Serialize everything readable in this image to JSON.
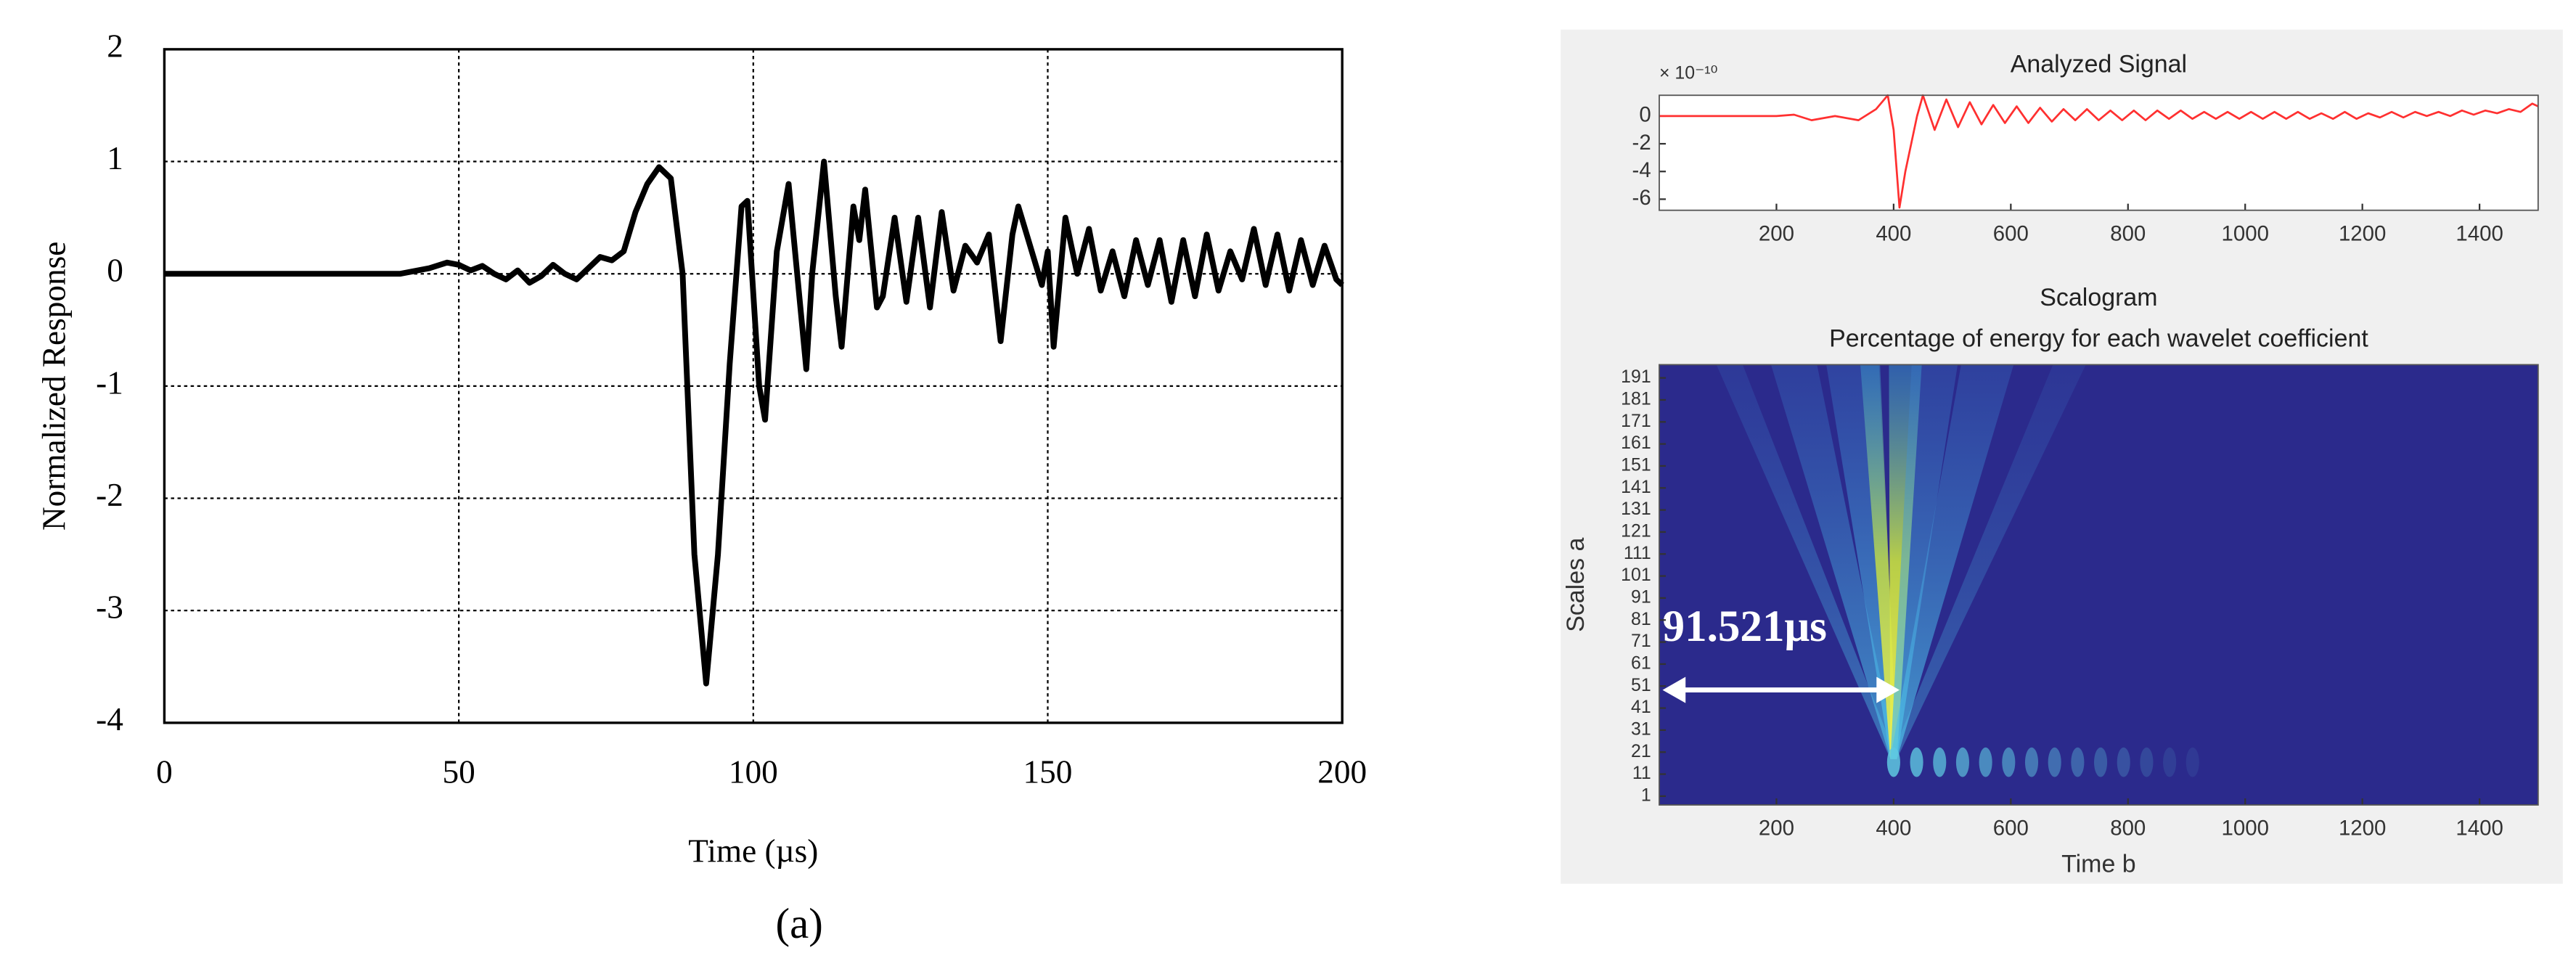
{
  "chart_data": [
    {
      "type": "line",
      "label": "(a)",
      "xlabel": "Time (µs)",
      "ylabel": "Normalized Response",
      "xlim": [
        0,
        200
      ],
      "xticks": [
        0,
        50,
        100,
        150,
        200
      ],
      "ylim": [
        -4,
        2
      ],
      "yticks": [
        -4,
        -3,
        -2,
        -1,
        0,
        1,
        2
      ],
      "grid": true,
      "series": [
        {
          "color": "#000000",
          "x": [
            0,
            40,
            45,
            48,
            50,
            52,
            54,
            56,
            58,
            60,
            62,
            64,
            66,
            68,
            70,
            72,
            74,
            76,
            78,
            80,
            82,
            84,
            86,
            88,
            90,
            92,
            94,
            96,
            98,
            99,
            101,
            102,
            104,
            106,
            108,
            109,
            110,
            112,
            114,
            115,
            117,
            118,
            119,
            121,
            122,
            124,
            126,
            128,
            130,
            132,
            134,
            136,
            138,
            140,
            142,
            144,
            145,
            147,
            149,
            150,
            151,
            153,
            155,
            157,
            159,
            161,
            163,
            165,
            167,
            169,
            171,
            173,
            175,
            177,
            179,
            181,
            183,
            185,
            187,
            189,
            191,
            193,
            195,
            197,
            199,
            200
          ],
          "values": [
            0,
            0,
            0.05,
            0.1,
            0.08,
            0.03,
            0.07,
            0,
            -0.05,
            0.03,
            -0.08,
            -0.02,
            0.08,
            0,
            -0.05,
            0.05,
            0.15,
            0.12,
            0.2,
            0.55,
            0.8,
            0.95,
            0.85,
            0,
            -2.5,
            -3.65,
            -2.5,
            -0.8,
            0.6,
            0.65,
            -1.0,
            -1.3,
            0.2,
            0.8,
            -0.3,
            -0.85,
            0,
            1.0,
            -0.2,
            -0.65,
            0.6,
            0.3,
            0.75,
            -0.3,
            -0.2,
            0.5,
            -0.25,
            0.5,
            -0.3,
            0.55,
            -0.15,
            0.25,
            0.1,
            0.35,
            -0.6,
            0.35,
            0.6,
            0.25,
            -0.1,
            0.2,
            -0.65,
            0.5,
            0,
            0.4,
            -0.15,
            0.2,
            -0.2,
            0.3,
            -0.1,
            0.3,
            -0.25,
            0.3,
            -0.2,
            0.35,
            -0.15,
            0.2,
            -0.05,
            0.4,
            -0.1,
            0.35,
            -0.15,
            0.3,
            -0.1,
            0.25,
            -0.05,
            -0.1
          ]
        }
      ]
    },
    {
      "type": "line",
      "title": "Analyzed Signal",
      "y_multiplier": "× 10⁻¹⁰",
      "xlim": [
        0,
        1500
      ],
      "xticks": [
        200,
        400,
        600,
        800,
        1000,
        1200,
        1400
      ],
      "ylim": [
        -6.8,
        1.5
      ],
      "yticks": [
        -6,
        -4,
        -2,
        0
      ],
      "grid": false,
      "series": [
        {
          "color": "#ff3030",
          "x": [
            0,
            200,
            230,
            260,
            300,
            340,
            370,
            390,
            400,
            410,
            420,
            440,
            450,
            470,
            490,
            510,
            530,
            550,
            570,
            590,
            610,
            630,
            650,
            670,
            690,
            710,
            730,
            750,
            770,
            790,
            810,
            830,
            850,
            870,
            890,
            910,
            930,
            950,
            970,
            990,
            1010,
            1030,
            1050,
            1070,
            1090,
            1110,
            1130,
            1150,
            1170,
            1190,
            1210,
            1230,
            1250,
            1270,
            1290,
            1310,
            1330,
            1350,
            1370,
            1390,
            1410,
            1430,
            1450,
            1470,
            1490,
            1500
          ],
          "values": [
            0,
            0,
            0.1,
            -0.3,
            0,
            -0.3,
            0.5,
            1.5,
            -1,
            -6.6,
            -4,
            0,
            1.5,
            -1,
            1.2,
            -0.8,
            1,
            -0.6,
            0.8,
            -0.5,
            0.7,
            -0.5,
            0.6,
            -0.4,
            0.5,
            -0.3,
            0.5,
            -0.3,
            0.4,
            -0.3,
            0.4,
            -0.3,
            0.4,
            -0.2,
            0.4,
            -0.2,
            0.3,
            -0.2,
            0.3,
            -0.2,
            0.3,
            -0.2,
            0.3,
            -0.2,
            0.3,
            -0.2,
            0.2,
            -0.2,
            0.3,
            -0.2,
            0.2,
            -0.1,
            0.3,
            -0.1,
            0.3,
            0,
            0.3,
            0,
            0.4,
            0.1,
            0.4,
            0.2,
            0.5,
            0.3,
            0.9,
            0.7
          ]
        }
      ]
    },
    {
      "type": "heatmap",
      "title": "Scalogram",
      "subtitle": "Percentage of energy for each wavelet coefficient",
      "xlabel": "Time b",
      "ylabel": "Scales a",
      "annotation": "91.521μs",
      "background": "#2b2a8c",
      "xlim": [
        0,
        1500
      ],
      "xticks": [
        200,
        400,
        600,
        800,
        1000,
        1200,
        1400
      ],
      "ylim": [
        -3,
        197
      ],
      "yticks": [
        1,
        11,
        21,
        31,
        41,
        51,
        61,
        71,
        81,
        91,
        101,
        111,
        121,
        131,
        141,
        151,
        161,
        171,
        181,
        191
      ]
    }
  ]
}
